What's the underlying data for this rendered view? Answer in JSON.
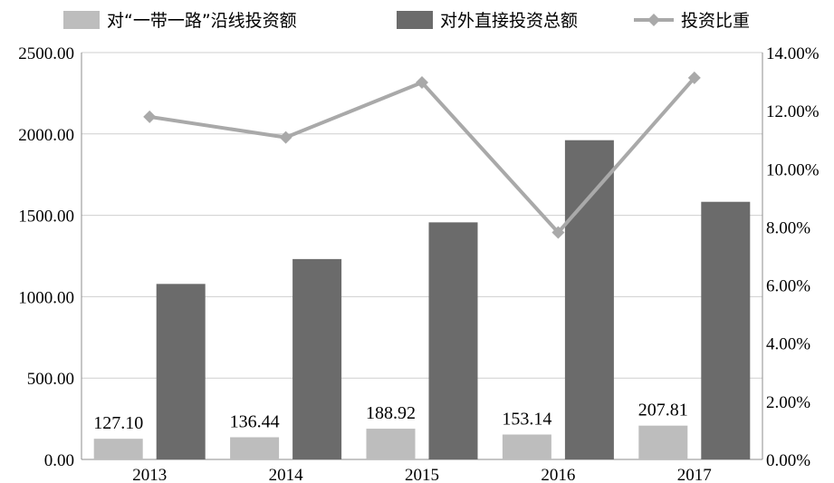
{
  "chart_data": {
    "type": "bar",
    "categories": [
      "2013",
      "2014",
      "2015",
      "2016",
      "2017"
    ],
    "series": [
      {
        "name": "对“一带一路”沿线投资额",
        "kind": "bar",
        "axis": "left",
        "color": "#bdbdbd",
        "values": [
          127.1,
          136.44,
          188.92,
          153.14,
          207.81
        ],
        "labels": [
          "127.10",
          "136.44",
          "188.92",
          "153.14",
          "207.81"
        ]
      },
      {
        "name": "对外直接投资总额",
        "kind": "bar",
        "axis": "left",
        "color": "#6b6b6b",
        "values": [
          1078.4,
          1231.2,
          1456.7,
          1961.5,
          1582.9
        ]
      },
      {
        "name": "投资比重",
        "kind": "line",
        "axis": "right",
        "color": "#a9a9a9",
        "values": [
          11.79,
          11.08,
          12.97,
          7.81,
          13.13
        ]
      }
    ],
    "y_left": {
      "min": 0,
      "max": 2500,
      "step": 500,
      "tick_labels": [
        "0.00",
        "500.00",
        "1000.00",
        "1500.00",
        "2000.00",
        "2500.00"
      ]
    },
    "y_right": {
      "min": 0,
      "max": 14,
      "step": 2,
      "tick_labels": [
        "0.00%",
        "2.00%",
        "4.00%",
        "6.00%",
        "8.00%",
        "10.00%",
        "12.00%",
        "14.00%"
      ]
    },
    "grid": "horizontal",
    "legend_position": "top"
  }
}
